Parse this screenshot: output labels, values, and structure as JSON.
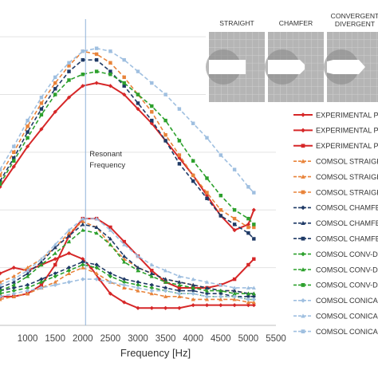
{
  "chart_data": {
    "type": "line",
    "xlabel": "Frequency [Hz]",
    "ylabel": "",
    "xlim": [
      500,
      5500
    ],
    "ylim": [
      0,
      110
    ],
    "x_ticks": [
      1000,
      1500,
      2000,
      2500,
      3000,
      3500,
      4000,
      4500,
      5000,
      5500
    ],
    "grid": true,
    "legend_position": "right",
    "annotation": {
      "text_line1": "Resonant",
      "text_line2": "Frequency",
      "x": 2050
    },
    "inset": {
      "labels": [
        "STRAIGHT",
        "CHAMFER",
        "CONVERGENT\nDIVERGENT"
      ]
    },
    "series": [
      {
        "name": "EXPERIMENTAL PT",
        "color": "#d62728",
        "dash": "solid",
        "marker": "diamond",
        "x": [
          500,
          750,
          1000,
          1250,
          1500,
          1750,
          2000,
          2250,
          2500,
          2750,
          3000,
          3250,
          3500,
          3750,
          4000,
          4250,
          4500,
          4750,
          5000,
          5100
        ],
        "y": [
          48,
          55,
          62,
          68,
          74,
          79,
          83,
          84,
          83,
          80,
          75,
          70,
          64,
          58,
          52,
          45,
          38,
          33,
          35,
          40
        ]
      },
      {
        "name": "EXPERIMENTAL PT",
        "color": "#d62728",
        "dash": "solid",
        "marker": "diamond",
        "x": [
          500,
          750,
          1000,
          1250,
          1500,
          1750,
          2000,
          2150,
          2300,
          2500,
          2750,
          3000,
          3250,
          3500,
          3750,
          4000,
          4250,
          4500,
          4750,
          5000,
          5100
        ],
        "y": [
          18,
          20,
          19,
          21,
          23,
          25,
          23,
          20,
          16,
          11,
          8,
          6,
          6,
          6,
          6,
          7,
          7,
          7,
          7,
          7,
          7
        ]
      },
      {
        "name": "EXPERIMENTAL PT",
        "color": "#d62728",
        "dash": "solid",
        "marker": "square",
        "x": [
          500,
          750,
          1000,
          1250,
          1500,
          1750,
          2000,
          2250,
          2500,
          2750,
          3000,
          3250,
          3500,
          3750,
          4000,
          4250,
          4500,
          4750,
          5000,
          5100
        ],
        "y": [
          10,
          10,
          11,
          14,
          21,
          31,
          37,
          37,
          34,
          29,
          24,
          19,
          15,
          13,
          13,
          13,
          14,
          16,
          21,
          23
        ]
      },
      {
        "name": "COMSOL STRAIGHT",
        "color": "#e8833a",
        "dash": "5,3",
        "marker": "triangle",
        "x": [
          500,
          750,
          1000,
          1250,
          1500,
          1750,
          2000,
          2250,
          2500,
          2750,
          3000,
          3250,
          3500,
          3750,
          4000,
          4250,
          4500,
          4750,
          5000,
          5100
        ],
        "y": [
          9,
          10,
          11,
          13,
          15,
          18,
          20,
          18,
          15,
          13,
          12,
          11,
          10,
          10,
          9,
          9,
          9,
          9,
          8,
          8
        ]
      },
      {
        "name": "COMSOL STRAIGHT",
        "color": "#e8833a",
        "dash": "5,3",
        "marker": "triangle",
        "x": [
          500,
          750,
          1000,
          1250,
          1500,
          1750,
          2000,
          2250,
          2500,
          2750,
          3000,
          3250,
          3500,
          3750,
          4000,
          4250,
          4500,
          4750,
          5000,
          5100
        ],
        "y": [
          15,
          17,
          20,
          23,
          27,
          32,
          36,
          34,
          28,
          23,
          20,
          18,
          16,
          15,
          14,
          13,
          12,
          12,
          11,
          11
        ]
      },
      {
        "name": "COMSOL STRAIGHT",
        "color": "#e8833a",
        "dash": "5,3",
        "marker": "square",
        "x": [
          500,
          750,
          1000,
          1250,
          1500,
          1750,
          2000,
          2250,
          2500,
          2750,
          3000,
          3250,
          3500,
          3750,
          4000,
          4250,
          4500,
          4750,
          5000,
          5100
        ],
        "y": [
          52,
          60,
          69,
          77,
          84,
          90,
          95,
          94,
          91,
          86,
          80,
          74,
          66,
          59,
          52,
          46,
          40,
          37,
          34,
          34
        ]
      },
      {
        "name": "COMSOL CHAMFER",
        "color": "#1f3a66",
        "dash": "5,3",
        "marker": "diamond",
        "x": [
          500,
          750,
          1000,
          1250,
          1500,
          1750,
          2000,
          2250,
          2500,
          2750,
          3000,
          3250,
          3500,
          3750,
          4000,
          4250,
          4500,
          4750,
          5000,
          5100
        ],
        "y": [
          12,
          13,
          14,
          16,
          18,
          20,
          22,
          21,
          18,
          16,
          15,
          14,
          13,
          12,
          12,
          11,
          11,
          10,
          10,
          10
        ]
      },
      {
        "name": "COMSOL CHAMFER",
        "color": "#1f3a66",
        "dash": "5,3",
        "marker": "triangle",
        "x": [
          500,
          750,
          1000,
          1250,
          1500,
          1750,
          2000,
          2250,
          2500,
          2750,
          3000,
          3250,
          3500,
          3750,
          4000,
          4250,
          4500,
          4750,
          5000,
          5100
        ],
        "y": [
          13,
          15,
          18,
          22,
          27,
          31,
          35,
          34,
          30,
          24,
          20,
          18,
          16,
          15,
          14,
          13,
          12,
          12,
          11,
          11
        ]
      },
      {
        "name": "COMSOL CHAMFER",
        "color": "#1f3a66",
        "dash": "5,3",
        "marker": "square",
        "x": [
          500,
          750,
          1000,
          1250,
          1500,
          1750,
          2000,
          2250,
          2500,
          2750,
          3000,
          3250,
          3500,
          3750,
          4000,
          4250,
          4500,
          4750,
          5000,
          5100
        ],
        "y": [
          50,
          58,
          67,
          75,
          82,
          88,
          92,
          92,
          88,
          83,
          77,
          71,
          64,
          56,
          50,
          44,
          38,
          35,
          32,
          30
        ]
      },
      {
        "name": "COMSOL CONV-DIV",
        "color": "#2ca02c",
        "dash": "5,3",
        "marker": "diamond",
        "x": [
          500,
          750,
          1000,
          1250,
          1500,
          1750,
          2000,
          2250,
          2500,
          2750,
          3000,
          3250,
          3500,
          3750,
          4000,
          4250,
          4500,
          4750,
          5000,
          5100
        ],
        "y": [
          11,
          12,
          13,
          15,
          17,
          19,
          21,
          20,
          17,
          15,
          14,
          13,
          12,
          11,
          11,
          10,
          10,
          10,
          9,
          9
        ]
      },
      {
        "name": "COMSOL CONV-DIV",
        "color": "#2ca02c",
        "dash": "5,3",
        "marker": "triangle",
        "x": [
          500,
          750,
          1000,
          1250,
          1500,
          1750,
          2000,
          2250,
          2500,
          2750,
          3000,
          3250,
          3500,
          3750,
          4000,
          4250,
          4500,
          4750,
          5000,
          5100
        ],
        "y": [
          12,
          14,
          17,
          21,
          25,
          29,
          33,
          32,
          28,
          22,
          19,
          17,
          15,
          14,
          13,
          12,
          12,
          11,
          11,
          11
        ]
      },
      {
        "name": "COMSOL CONV-DIV",
        "color": "#2ca02c",
        "dash": "5,3",
        "marker": "square",
        "x": [
          500,
          750,
          1000,
          1250,
          1500,
          1750,
          2000,
          2250,
          2500,
          2750,
          3000,
          3250,
          3500,
          3750,
          4000,
          4250,
          4500,
          4750,
          5000,
          5100
        ],
        "y": [
          49,
          57,
          65,
          73,
          80,
          85,
          87,
          88,
          87,
          84,
          80,
          76,
          71,
          64,
          57,
          51,
          45,
          40,
          37,
          35
        ]
      },
      {
        "name": "COMSOL CONICAL",
        "color": "#9fbfe0",
        "dash": "5,3",
        "marker": "diamond",
        "x": [
          500,
          750,
          1000,
          1250,
          1500,
          1750,
          2000,
          2250,
          2500,
          2750,
          3000,
          3250,
          3500,
          3750,
          4000,
          4250,
          4500,
          4750,
          5000,
          5100
        ],
        "y": [
          10,
          11,
          12,
          13,
          14,
          15,
          16,
          16,
          15,
          14,
          13,
          12,
          12,
          11,
          11,
          10,
          10,
          10,
          9,
          9
        ]
      },
      {
        "name": "COMSOL CONICAL",
        "color": "#9fbfe0",
        "dash": "5,3",
        "marker": "triangle",
        "x": [
          500,
          750,
          1000,
          1250,
          1500,
          1750,
          2000,
          2250,
          2500,
          2750,
          3000,
          3250,
          3500,
          3750,
          4000,
          4250,
          4500,
          4750,
          5000,
          5100
        ],
        "y": [
          14,
          16,
          19,
          23,
          28,
          33,
          37,
          37,
          33,
          28,
          24,
          21,
          19,
          17,
          16,
          15,
          14,
          13,
          13,
          13
        ]
      },
      {
        "name": "COMSOL CONICAL",
        "color": "#9fbfe0",
        "dash": "5,3",
        "marker": "square",
        "x": [
          500,
          750,
          1000,
          1250,
          1500,
          1750,
          2000,
          2250,
          2500,
          2750,
          3000,
          3250,
          3500,
          3750,
          4000,
          4250,
          4500,
          4750,
          5000,
          5100
        ],
        "y": [
          54,
          62,
          71,
          79,
          86,
          91,
          95,
          96,
          95,
          92,
          88,
          84,
          80,
          75,
          70,
          65,
          59,
          54,
          48,
          46
        ]
      }
    ]
  }
}
